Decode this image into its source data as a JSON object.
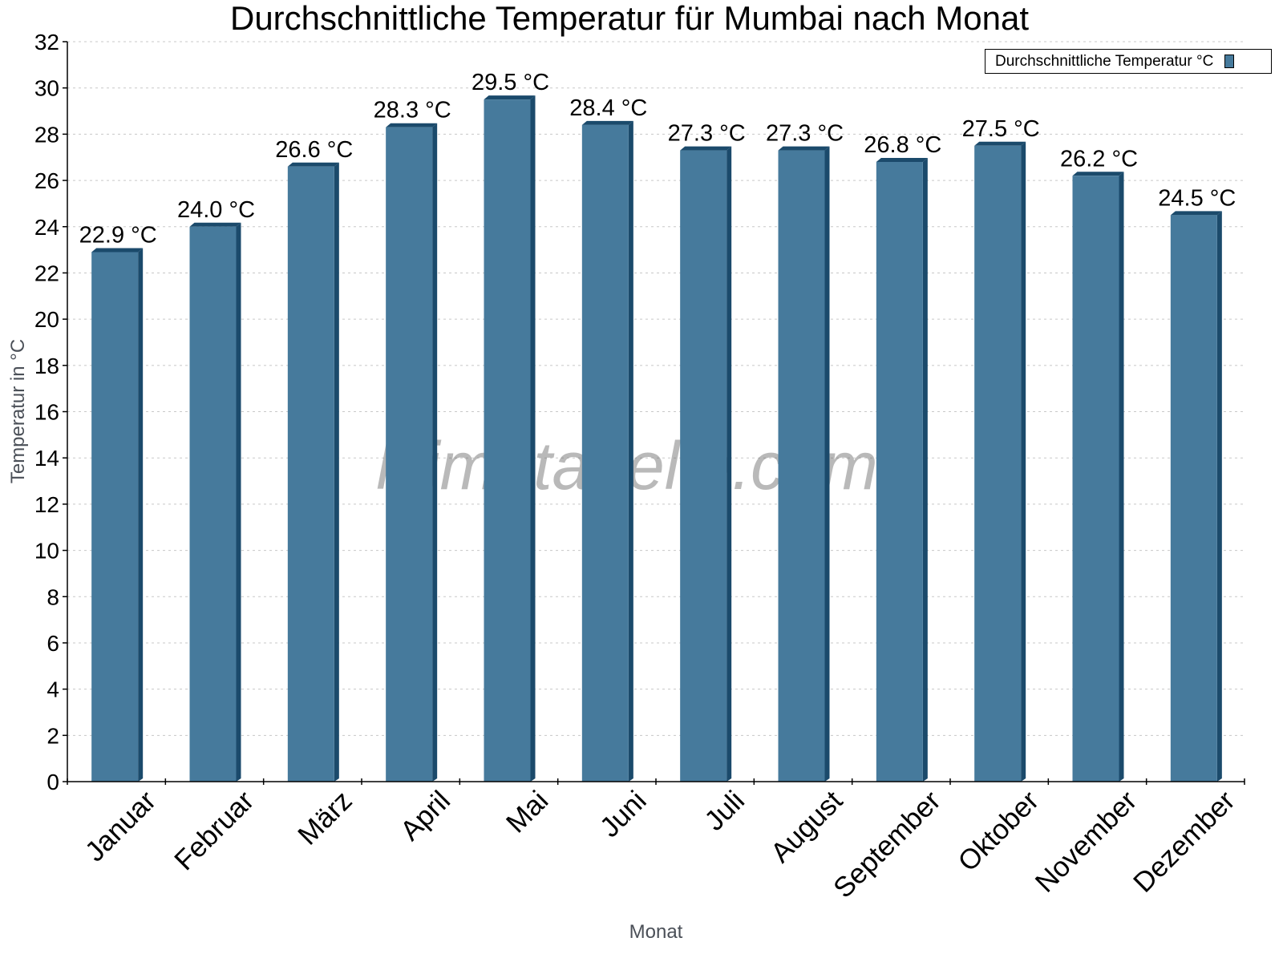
{
  "chart_data": {
    "type": "bar",
    "title": "Durchschnittliche Temperatur für Mumbai nach Monat",
    "xlabel": "Monat",
    "ylabel": "Temperatur in °C",
    "ylim": [
      0,
      32
    ],
    "yticks": [
      0,
      2,
      4,
      6,
      8,
      10,
      12,
      14,
      16,
      18,
      20,
      22,
      24,
      26,
      28,
      30,
      32
    ],
    "grid": true,
    "legend_position": "top-right",
    "categories": [
      "Januar",
      "Februar",
      "März",
      "April",
      "Mai",
      "Juni",
      "Juli",
      "August",
      "September",
      "Oktober",
      "November",
      "Dezember"
    ],
    "series": [
      {
        "name": "Durchschnittliche Temperatur °C",
        "color": "#467a9c",
        "values": [
          22.9,
          24.0,
          26.6,
          28.3,
          29.5,
          28.4,
          27.3,
          27.3,
          26.8,
          27.5,
          26.2,
          24.5
        ],
        "labels": [
          "22.9 °C",
          "24.0 °C",
          "26.6 °C",
          "28.3 °C",
          "29.5 °C",
          "28.4 °C",
          "27.3 °C",
          "27.3 °C",
          "26.8 °C",
          "27.5 °C",
          "26.2 °C",
          "24.5 °C"
        ]
      }
    ],
    "watermark": "klimatabelle.com"
  },
  "colors": {
    "bar_face": "#467a9c",
    "bar_side": "#1b4a6b",
    "grid": "#c8c8c8",
    "axis": "#000000"
  }
}
